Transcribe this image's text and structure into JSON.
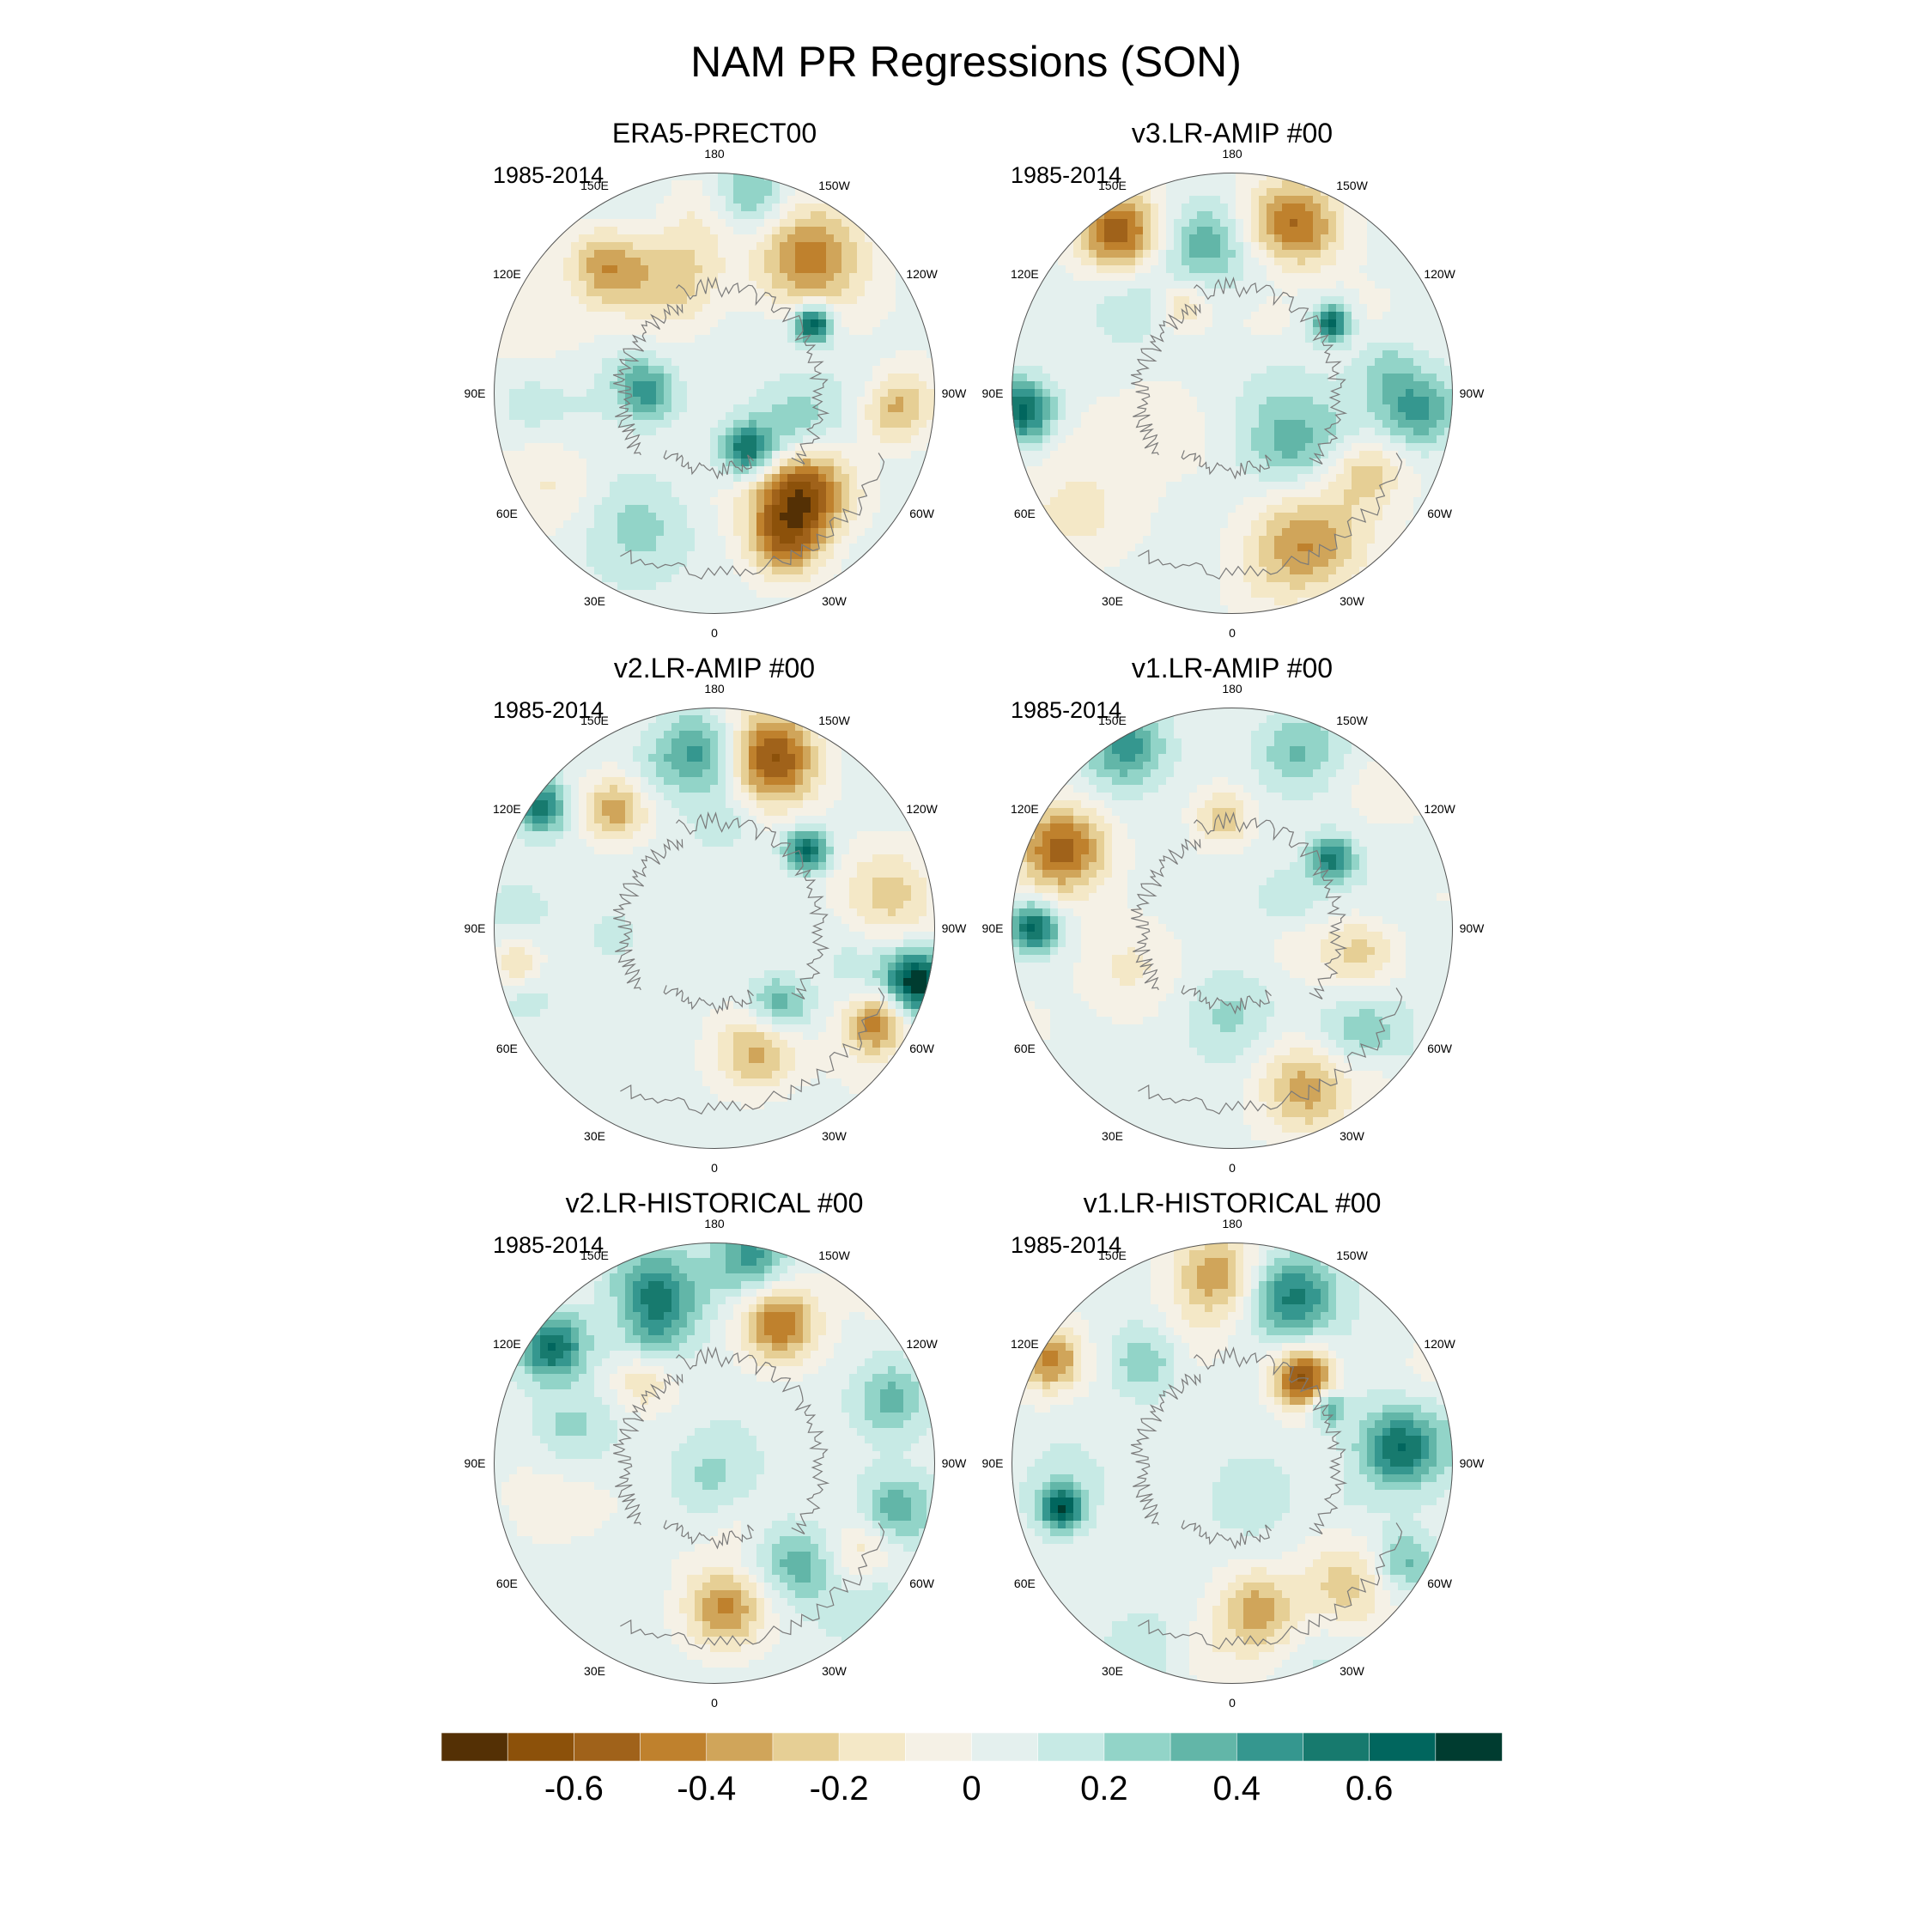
{
  "title": "NAM PR Regressions (SON)",
  "chart_data": [
    {
      "type": "heatmap",
      "title": "ERA5-PRECT00",
      "period": "1985-2014",
      "projection": "north-polar-stereographic",
      "lon_labels": [
        "180",
        "150E",
        "120E",
        "90E",
        "60E",
        "30E",
        "0",
        "30W",
        "60W",
        "90W",
        "120W",
        "150W"
      ],
      "anomalies": [
        {
          "lon": -145,
          "colat": 0.75,
          "value": -0.5,
          "spread": 0.17
        },
        {
          "lon": -40,
          "colat": 0.6,
          "value": -0.6,
          "spread": 0.16
        },
        {
          "lon": -85,
          "colat": 0.8,
          "value": -0.5,
          "spread": 0.12
        },
        {
          "lon": -25,
          "colat": 0.75,
          "value": -0.4,
          "spread": 0.12
        },
        {
          "lon": -125,
          "colat": 0.55,
          "value": 0.7,
          "spread": 0.06
        },
        {
          "lon": -30,
          "colat": 0.3,
          "value": 0.6,
          "spread": 0.09
        },
        {
          "lon": 140,
          "colat": 0.75,
          "value": -0.4,
          "spread": 0.12
        },
        {
          "lon": 160,
          "colat": 0.55,
          "value": -0.3,
          "spread": 0.15
        },
        {
          "lon": 90,
          "colat": 0.3,
          "value": 0.4,
          "spread": 0.09
        },
        {
          "lon": 100,
          "colat": 0.7,
          "value": -0.1,
          "spread": 0.25
        },
        {
          "lon": 30,
          "colat": 0.7,
          "value": 0.2,
          "spread": 0.18
        },
        {
          "lon": -70,
          "colat": 0.4,
          "value": 0.25,
          "spread": 0.12
        },
        {
          "lon": -170,
          "colat": 0.9,
          "value": 0.3,
          "spread": 0.12
        },
        {
          "lon": 60,
          "colat": 0.85,
          "value": -0.15,
          "spread": 0.15
        }
      ]
    },
    {
      "type": "heatmap",
      "title": "v3.LR-AMIP  #00",
      "period": "1985-2014",
      "projection": "north-polar-stereographic",
      "lon_labels": [
        "180",
        "150E",
        "120E",
        "90E",
        "60E",
        "30E",
        "0",
        "30W",
        "60W",
        "90W",
        "120W",
        "150W"
      ],
      "anomalies": [
        {
          "lon": -160,
          "colat": 0.8,
          "value": -0.6,
          "spread": 0.15
        },
        {
          "lon": 145,
          "colat": 0.9,
          "value": -0.6,
          "spread": 0.13
        },
        {
          "lon": -25,
          "colat": 0.75,
          "value": -0.4,
          "spread": 0.17
        },
        {
          "lon": -60,
          "colat": 0.7,
          "value": -0.3,
          "spread": 0.12
        },
        {
          "lon": -125,
          "colat": 0.55,
          "value": 0.6,
          "spread": 0.06
        },
        {
          "lon": 85,
          "colat": 0.95,
          "value": 0.6,
          "spread": 0.1
        },
        {
          "lon": -85,
          "colat": 0.85,
          "value": 0.4,
          "spread": 0.12
        },
        {
          "lon": -50,
          "colat": 0.35,
          "value": 0.3,
          "spread": 0.15
        },
        {
          "lon": 170,
          "colat": 0.7,
          "value": 0.3,
          "spread": 0.12
        },
        {
          "lon": 150,
          "colat": 0.45,
          "value": -0.3,
          "spread": 0.08
        },
        {
          "lon": 60,
          "colat": 0.75,
          "value": -0.1,
          "spread": 0.25
        },
        {
          "lon": -100,
          "colat": 0.7,
          "value": 0.2,
          "spread": 0.1
        }
      ]
    },
    {
      "type": "heatmap",
      "title": "v2.LR-AMIP  #00",
      "period": "1985-2014",
      "projection": "north-polar-stereographic",
      "lon_labels": [
        "180",
        "150E",
        "120E",
        "90E",
        "60E",
        "30E",
        "0",
        "30W",
        "60W",
        "90W",
        "120W",
        "150W"
      ],
      "anomalies": [
        {
          "lon": -160,
          "colat": 0.8,
          "value": -0.6,
          "spread": 0.14
        },
        {
          "lon": -20,
          "colat": 0.6,
          "value": -0.5,
          "spread": 0.14
        },
        {
          "lon": -60,
          "colat": 0.85,
          "value": -0.5,
          "spread": 0.1
        },
        {
          "lon": -75,
          "colat": 0.95,
          "value": 0.7,
          "spread": 0.1
        },
        {
          "lon": -130,
          "colat": 0.55,
          "value": 0.6,
          "spread": 0.07
        },
        {
          "lon": 175,
          "colat": 0.8,
          "value": 0.4,
          "spread": 0.13
        },
        {
          "lon": 140,
          "colat": 0.7,
          "value": -0.4,
          "spread": 0.1
        },
        {
          "lon": 125,
          "colat": 0.95,
          "value": 0.5,
          "spread": 0.08
        },
        {
          "lon": -40,
          "colat": 0.45,
          "value": 0.4,
          "spread": 0.1
        },
        {
          "lon": -100,
          "colat": 0.8,
          "value": -0.3,
          "spread": 0.15
        },
        {
          "lon": 80,
          "colat": 0.9,
          "value": -0.3,
          "spread": 0.08
        },
        {
          "lon": 70,
          "colat": 0.4,
          "value": 0.15,
          "spread": 0.2
        }
      ]
    },
    {
      "type": "heatmap",
      "title": "v1.LR-AMIP  #00",
      "period": "1985-2014",
      "projection": "north-polar-stereographic",
      "lon_labels": [
        "180",
        "150E",
        "120E",
        "90E",
        "60E",
        "30E",
        "0",
        "30W",
        "60W",
        "90W",
        "120W",
        "150W"
      ],
      "anomalies": [
        {
          "lon": 115,
          "colat": 0.85,
          "value": -0.6,
          "spread": 0.14
        },
        {
          "lon": 90,
          "colat": 0.9,
          "value": 0.6,
          "spread": 0.08
        },
        {
          "lon": -25,
          "colat": 0.8,
          "value": -0.4,
          "spread": 0.15
        },
        {
          "lon": -125,
          "colat": 0.55,
          "value": 0.5,
          "spread": 0.07
        },
        {
          "lon": 150,
          "colat": 0.95,
          "value": 0.4,
          "spread": 0.12
        },
        {
          "lon": 175,
          "colat": 0.5,
          "value": -0.3,
          "spread": 0.09
        },
        {
          "lon": -50,
          "colat": 0.75,
          "value": 0.3,
          "spread": 0.15
        },
        {
          "lon": -80,
          "colat": 0.6,
          "value": -0.25,
          "spread": 0.12
        },
        {
          "lon": 0,
          "colat": 0.4,
          "value": 0.2,
          "spread": 0.15
        },
        {
          "lon": -160,
          "colat": 0.85,
          "value": 0.3,
          "spread": 0.13
        },
        {
          "lon": 70,
          "colat": 0.5,
          "value": -0.15,
          "spread": 0.15
        }
      ]
    },
    {
      "type": "heatmap",
      "title": "v2.LR-HISTORICAL  #00",
      "period": "1985-2014",
      "projection": "north-polar-stereographic",
      "lon_labels": [
        "180",
        "150E",
        "120E",
        "90E",
        "60E",
        "30E",
        "0",
        "30W",
        "60W",
        "90W",
        "120W",
        "150W"
      ],
      "anomalies": [
        {
          "lon": -155,
          "colat": 0.7,
          "value": -0.55,
          "spread": 0.12
        },
        {
          "lon": -5,
          "colat": 0.65,
          "value": -0.5,
          "spread": 0.13
        },
        {
          "lon": 160,
          "colat": 0.8,
          "value": 0.5,
          "spread": 0.15
        },
        {
          "lon": 125,
          "colat": 0.9,
          "value": 0.5,
          "spread": 0.1
        },
        {
          "lon": -170,
          "colat": 0.95,
          "value": 0.4,
          "spread": 0.12
        },
        {
          "lon": -40,
          "colat": 0.6,
          "value": 0.3,
          "spread": 0.12
        },
        {
          "lon": 140,
          "colat": 0.5,
          "value": -0.3,
          "spread": 0.1
        },
        {
          "lon": -75,
          "colat": 0.85,
          "value": 0.35,
          "spread": 0.12
        },
        {
          "lon": -110,
          "colat": 0.85,
          "value": 0.3,
          "spread": 0.12
        },
        {
          "lon": -60,
          "colat": 0.8,
          "value": -0.25,
          "spread": 0.12
        },
        {
          "lon": 80,
          "colat": 0.7,
          "value": -0.1,
          "spread": 0.2
        }
      ]
    },
    {
      "type": "heatmap",
      "title": "v1.LR-HISTORICAL  #00",
      "period": "1985-2014",
      "projection": "north-polar-stereographic",
      "lon_labels": [
        "180",
        "150E",
        "120E",
        "90E",
        "60E",
        "30E",
        "0",
        "30W",
        "60W",
        "90W",
        "120W",
        "150W"
      ],
      "anomalies": [
        {
          "lon": -140,
          "colat": 0.5,
          "value": -0.7,
          "spread": 0.1
        },
        {
          "lon": -160,
          "colat": 0.8,
          "value": 0.5,
          "spread": 0.14
        },
        {
          "lon": -95,
          "colat": 0.75,
          "value": 0.5,
          "spread": 0.12
        },
        {
          "lon": 175,
          "colat": 0.85,
          "value": -0.4,
          "spread": 0.14
        },
        {
          "lon": 120,
          "colat": 0.95,
          "value": -0.5,
          "spread": 0.1
        },
        {
          "lon": 75,
          "colat": 0.8,
          "value": 0.6,
          "spread": 0.07
        },
        {
          "lon": -45,
          "colat": 0.75,
          "value": -0.35,
          "spread": 0.15
        },
        {
          "lon": -10,
          "colat": 0.7,
          "value": -0.3,
          "spread": 0.12
        },
        {
          "lon": -120,
          "colat": 0.5,
          "value": 0.4,
          "spread": 0.06
        },
        {
          "lon": 140,
          "colat": 0.6,
          "value": 0.3,
          "spread": 0.12
        },
        {
          "lon": -60,
          "colat": 0.9,
          "value": 0.3,
          "spread": 0.1
        }
      ]
    }
  ],
  "colorbar": {
    "levels": [
      -0.7,
      -0.6,
      -0.5,
      -0.4,
      -0.3,
      -0.2,
      -0.1,
      0,
      0.1,
      0.2,
      0.3,
      0.4,
      0.5,
      0.6,
      0.7
    ],
    "labels": [
      "-0.6",
      "-0.4",
      "-0.2",
      "0",
      "0.2",
      "0.4",
      "0.6"
    ],
    "colors": [
      "#543005",
      "#8c510a",
      "#a0621a",
      "#bf812d",
      "#d0a55a",
      "#e6cf95",
      "#f4e8c7",
      "#f5f1e6",
      "#e4f0ee",
      "#c7eae5",
      "#92d4c8",
      "#62b6a8",
      "#35978f",
      "#177a6e",
      "#01665e",
      "#003c30"
    ]
  }
}
